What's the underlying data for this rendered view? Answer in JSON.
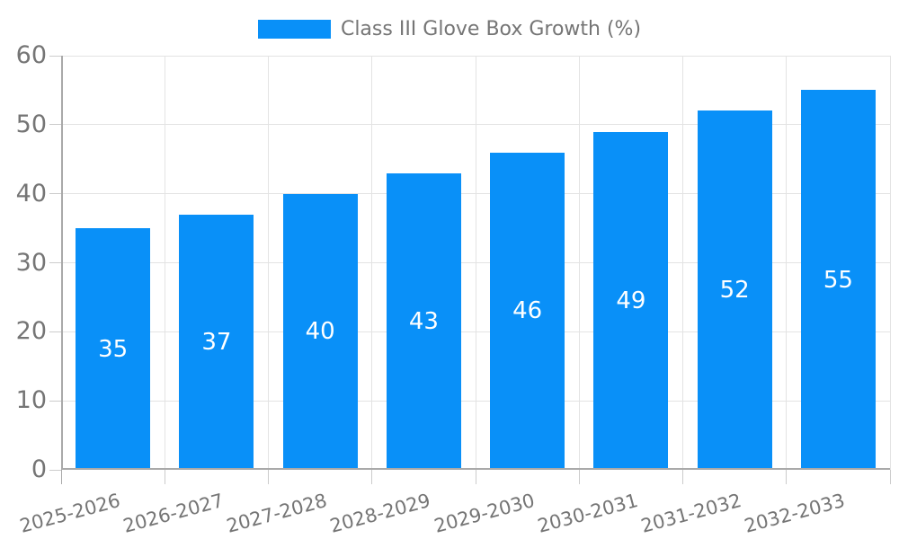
{
  "colors": {
    "bar": "#0990f8",
    "grid": "#e3e3e3",
    "tick": "#cccccc",
    "axis": "#a9a9a9",
    "label_text": "#757575",
    "value_text": "#ffffff",
    "background": "#ffffff"
  },
  "chart_data": {
    "type": "bar",
    "title": "",
    "xlabel": "",
    "ylabel": "",
    "legend_position": "top-center",
    "grid": true,
    "categories": [
      "2025-2026",
      "2026-2027",
      "2027-2028",
      "2028-2029",
      "2029-2030",
      "2030-2031",
      "2031-2032",
      "2032-2033"
    ],
    "series": [
      {
        "name": "Class III Glove Box Growth (%)",
        "values": [
          35,
          37,
          40,
          43,
          46,
          49,
          52,
          55
        ]
      }
    ],
    "ylim": [
      0,
      60
    ],
    "yticks": [
      0,
      10,
      20,
      30,
      40,
      50,
      60
    ],
    "x_tick_label_rotation_deg": -15,
    "bar_value_labels_shown": true
  }
}
